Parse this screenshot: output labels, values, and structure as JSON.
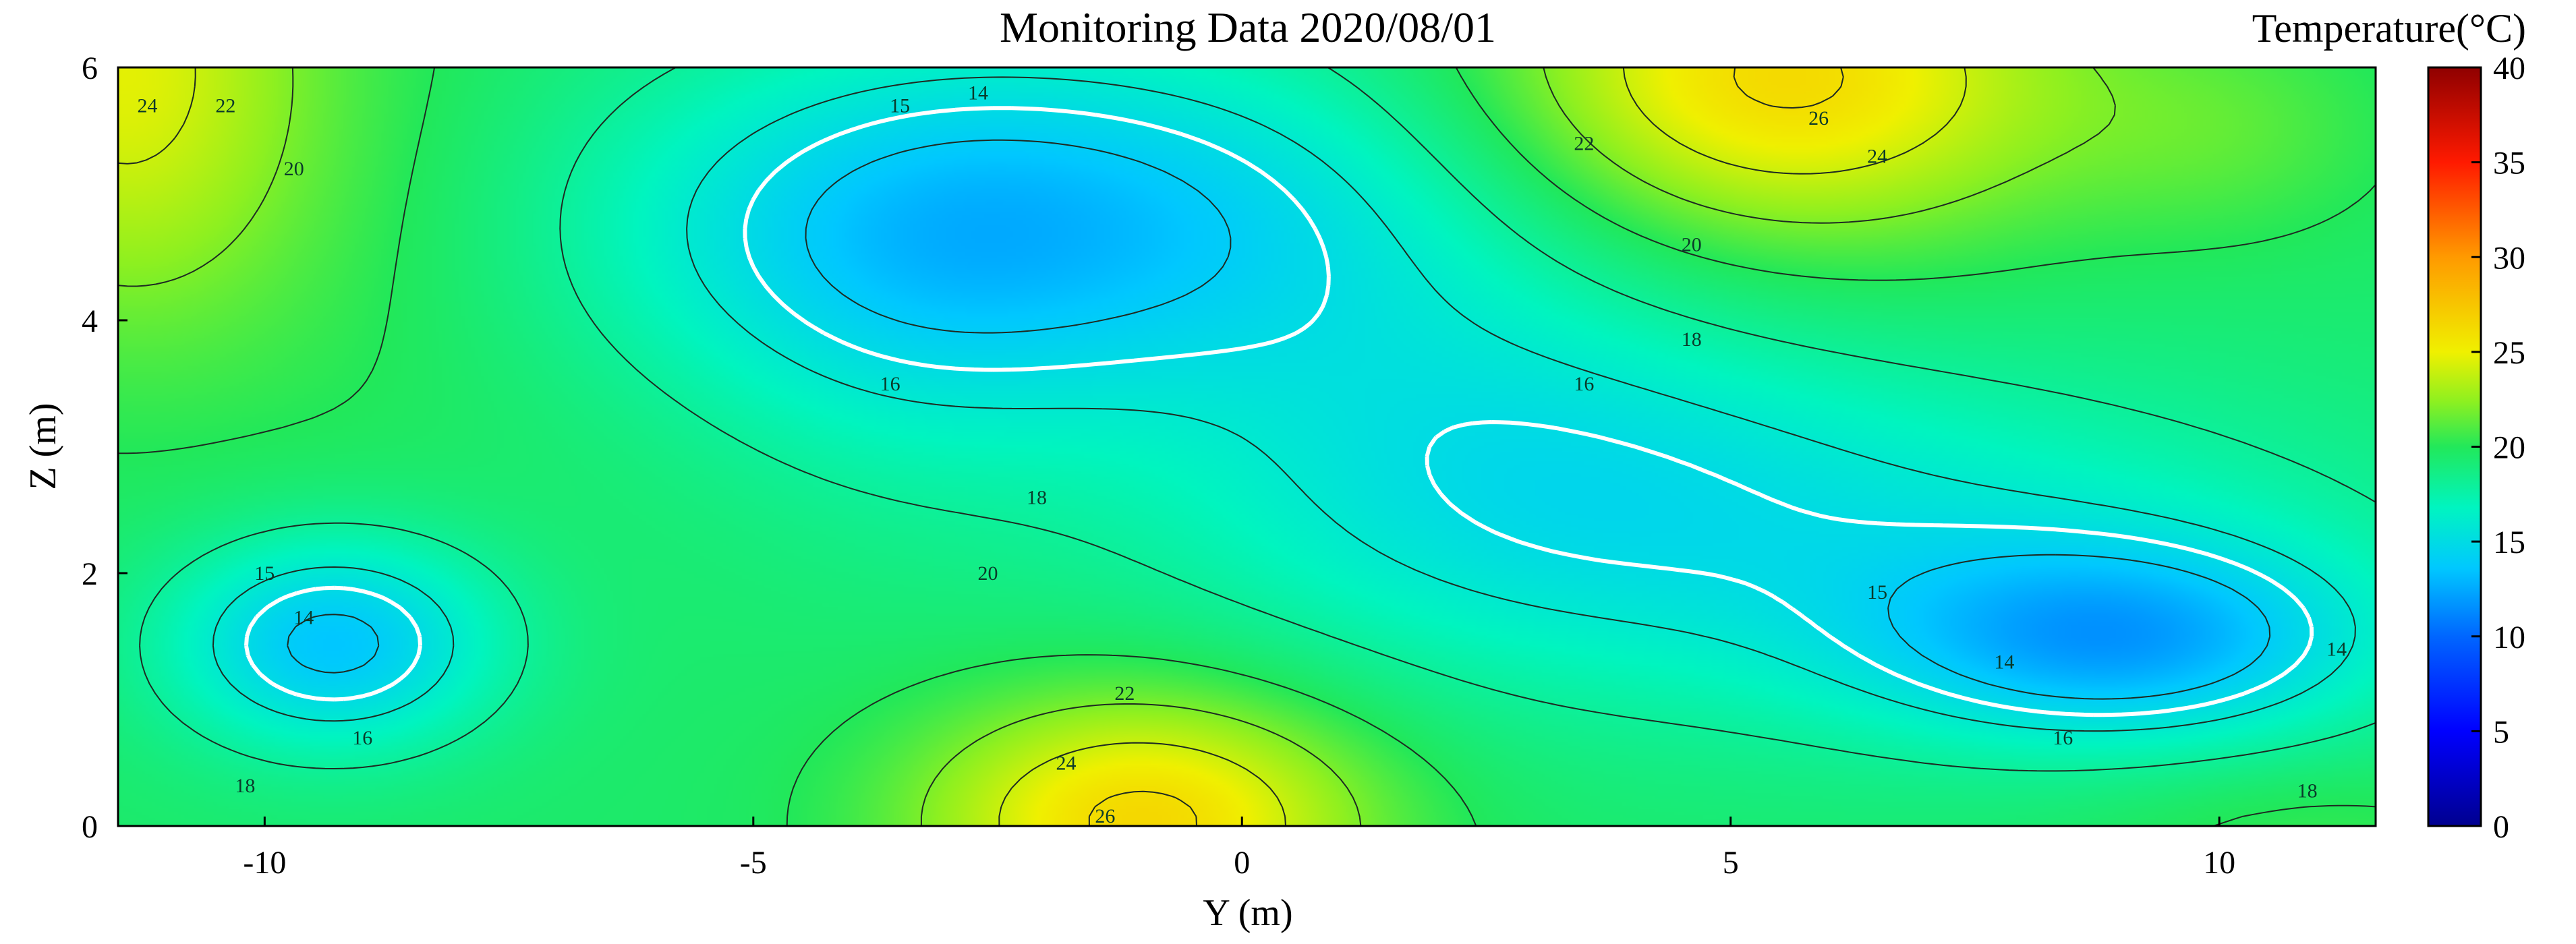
{
  "chart_data": {
    "type": "heatmap",
    "subtype": "filled contour",
    "title": "Monitoring Data 2020/08/01",
    "xlabel": "Y (m)",
    "ylabel": "Z (m)",
    "xlim": [
      -11.5,
      11.6
    ],
    "ylim": [
      0,
      6
    ],
    "xticks": [
      "-10",
      "-5",
      "0",
      "5",
      "10"
    ],
    "yticks": [
      "0",
      "2",
      "4",
      "6"
    ],
    "colorbar": {
      "label": "Temperature(°C)",
      "range": [
        0,
        40
      ],
      "ticks": [
        "0",
        "5",
        "10",
        "15",
        "20",
        "25",
        "30",
        "35",
        "40"
      ],
      "colormap": "jet"
    },
    "contour_levels": [
      14,
      15,
      16,
      18,
      20,
      22,
      24,
      26
    ],
    "highlighted_levels": [
      15
    ],
    "features": [
      {
        "kind": "cold core",
        "y": -2.0,
        "z": 4.8,
        "value": 13.5
      },
      {
        "kind": "cold core",
        "y": -9.3,
        "z": 1.45,
        "value": 13.5
      },
      {
        "kind": "cold core",
        "y": 9.0,
        "z": 1.45,
        "value": 13.7
      },
      {
        "kind": "warm core",
        "y": 5.5,
        "z": 5.9,
        "value": 26.5
      },
      {
        "kind": "warm core",
        "y": -1.0,
        "z": 0.05,
        "value": 26.5
      },
      {
        "kind": "warm core",
        "y": -11.5,
        "z": 6.0,
        "value": 24.5
      }
    ],
    "contour_labels": [
      {
        "text": "24",
        "y": -11.2,
        "z": 5.7
      },
      {
        "text": "22",
        "y": -10.4,
        "z": 5.7
      },
      {
        "text": "20",
        "y": -9.7,
        "z": 5.2
      },
      {
        "text": "15",
        "y": -3.5,
        "z": 5.7
      },
      {
        "text": "14",
        "y": -2.7,
        "z": 5.8
      },
      {
        "text": "16",
        "y": -3.6,
        "z": 3.5
      },
      {
        "text": "18",
        "y": -2.1,
        "z": 2.6
      },
      {
        "text": "20",
        "y": -2.6,
        "z": 2.0
      },
      {
        "text": "15",
        "y": -10.0,
        "z": 2.0
      },
      {
        "text": "14",
        "y": -9.6,
        "z": 1.65
      },
      {
        "text": "16",
        "y": -9.0,
        "z": 0.7
      },
      {
        "text": "18",
        "y": -10.2,
        "z": 0.32
      },
      {
        "text": "22",
        "y": -1.2,
        "z": 1.05
      },
      {
        "text": "24",
        "y": -1.8,
        "z": 0.5
      },
      {
        "text": "26",
        "y": -1.4,
        "z": 0.08
      },
      {
        "text": "26",
        "y": 5.9,
        "z": 5.6
      },
      {
        "text": "24",
        "y": 6.5,
        "z": 5.3
      },
      {
        "text": "22",
        "y": 3.5,
        "z": 5.4
      },
      {
        "text": "20",
        "y": 4.6,
        "z": 4.6
      },
      {
        "text": "18",
        "y": 4.6,
        "z": 3.85
      },
      {
        "text": "16",
        "y": 3.5,
        "z": 3.5
      },
      {
        "text": "15",
        "y": 6.5,
        "z": 1.85
      },
      {
        "text": "14",
        "y": 7.8,
        "z": 1.3
      },
      {
        "text": "14",
        "y": 11.2,
        "z": 1.4
      },
      {
        "text": "16",
        "y": 8.4,
        "z": 0.7
      },
      {
        "text": "18",
        "y": 10.9,
        "z": 0.28
      }
    ]
  }
}
